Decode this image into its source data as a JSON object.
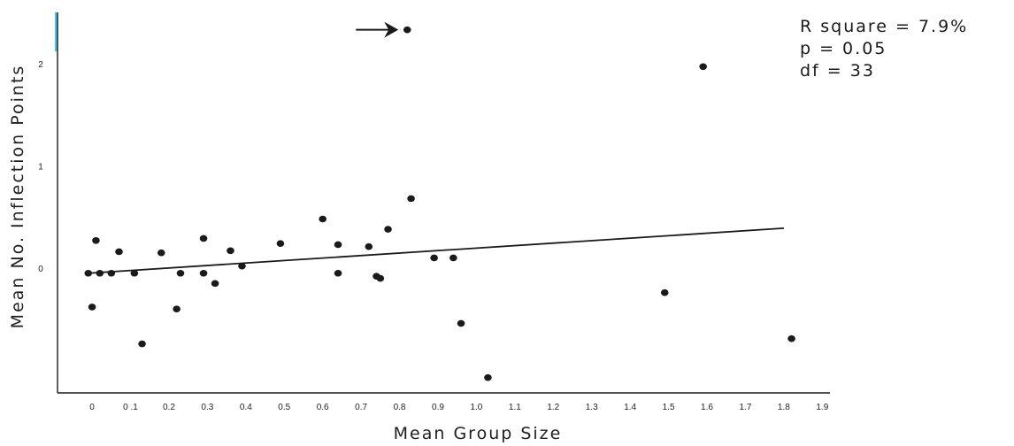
{
  "chart_data": {
    "type": "scatter",
    "xlabel": "Mean Group Size",
    "ylabel": "Mean No. Inflection Points",
    "x_ticks": [
      "0",
      "0 .1",
      "0.2",
      "0.3",
      "0.4",
      "0.5",
      "0.6",
      "0.7",
      "0.8",
      "0.9",
      "1.0",
      "1.1",
      "1.2",
      "1.3",
      "1.4",
      "1.5",
      "1.6",
      "1.7",
      "1.8",
      "1.9"
    ],
    "x_tick_values": [
      0,
      0.1,
      0.2,
      0.3,
      0.4,
      0.5,
      0.6,
      0.7,
      0.8,
      0.9,
      1.0,
      1.1,
      1.2,
      1.3,
      1.4,
      1.5,
      1.6,
      1.7,
      1.8,
      1.9
    ],
    "y_ticks": [
      "0",
      "1",
      "2"
    ],
    "y_tick_values": [
      0,
      1,
      2
    ],
    "xlim": [
      -0.09,
      1.92
    ],
    "ylim": [
      -1.22,
      2.5
    ],
    "points": [
      {
        "x": -0.01,
        "y": -0.05
      },
      {
        "x": 0.0,
        "y": -0.38
      },
      {
        "x": 0.01,
        "y": 0.27
      },
      {
        "x": 0.02,
        "y": -0.05
      },
      {
        "x": 0.05,
        "y": -0.05
      },
      {
        "x": 0.07,
        "y": 0.16
      },
      {
        "x": 0.11,
        "y": -0.05
      },
      {
        "x": 0.13,
        "y": -0.74
      },
      {
        "x": 0.18,
        "y": 0.15
      },
      {
        "x": 0.22,
        "y": -0.4
      },
      {
        "x": 0.23,
        "y": -0.05
      },
      {
        "x": 0.29,
        "y": 0.29
      },
      {
        "x": 0.29,
        "y": -0.05
      },
      {
        "x": 0.32,
        "y": -0.15
      },
      {
        "x": 0.36,
        "y": 0.17
      },
      {
        "x": 0.39,
        "y": 0.02
      },
      {
        "x": 0.49,
        "y": 0.24
      },
      {
        "x": 0.6,
        "y": 0.48
      },
      {
        "x": 0.64,
        "y": 0.23
      },
      {
        "x": 0.64,
        "y": -0.05
      },
      {
        "x": 0.72,
        "y": 0.21
      },
      {
        "x": 0.74,
        "y": -0.08
      },
      {
        "x": 0.75,
        "y": -0.1
      },
      {
        "x": 0.77,
        "y": 0.38
      },
      {
        "x": 0.82,
        "y": 2.33
      },
      {
        "x": 0.83,
        "y": 0.68
      },
      {
        "x": 0.89,
        "y": 0.1
      },
      {
        "x": 0.94,
        "y": 0.1
      },
      {
        "x": 0.96,
        "y": -0.54
      },
      {
        "x": 1.03,
        "y": -1.07
      },
      {
        "x": 1.49,
        "y": -0.24
      },
      {
        "x": 1.59,
        "y": 1.97
      },
      {
        "x": 1.82,
        "y": -0.69
      }
    ],
    "trendline": {
      "x": [
        -0.01,
        1.8
      ],
      "y": [
        -0.05,
        0.39
      ]
    },
    "highlighted_point": {
      "x": 0.82,
      "y": 2.33,
      "marker": "arrow"
    },
    "grid": false,
    "annotations": [
      "R  square = 7.9%",
      "p = 0.05",
      "df = 33"
    ]
  },
  "colors": {
    "points": "#1a1a1a",
    "axis": "#1a1a1a",
    "accent_bar": "#4ec3e8"
  }
}
